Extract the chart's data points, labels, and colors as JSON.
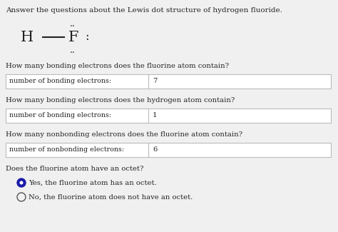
{
  "bg_color": "#f0f0f0",
  "title_text": "Answer the questions about the Lewis dot structure of hydrogen fluoride.",
  "q1": "How many bonding electrons does the fluorine atom contain?",
  "label1": "number of bonding electrons:",
  "answer1": "7",
  "q2": "How many bonding electrons does the hydrogen atom contain?",
  "label2": "number of bonding electrons:",
  "answer2": "1",
  "q3": "How many nonbonding electrons does the fluorine atom contain?",
  "label3": "number of nonbonding electrons:",
  "answer3": "6",
  "q4": "Does the fluorine atom have an octet?",
  "radio1": "Yes, the fluorine atom has an octet.",
  "radio2": "No, the fluorine atom does not have an octet.",
  "box_color": "#ffffff",
  "box_border": "#bbbbbb",
  "text_color": "#222222",
  "radio_fill": "#1a1aaa",
  "radio_border": "#555555",
  "divider_color": "#bbbbbb"
}
